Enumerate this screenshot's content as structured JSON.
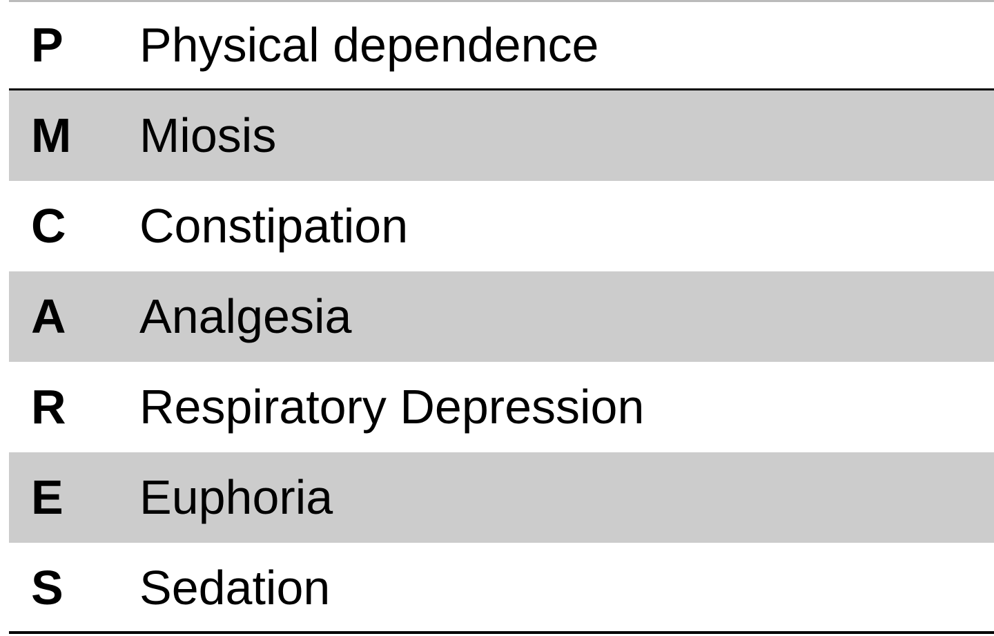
{
  "table": {
    "rows": [
      [
        "P",
        "Physical dependence"
      ],
      [
        "M",
        "Miosis"
      ],
      [
        "C",
        "Constipation"
      ],
      [
        "A",
        "Analgesia"
      ],
      [
        "R",
        "Respiratory Depression"
      ],
      [
        "E",
        "Euphoria"
      ],
      [
        "S",
        "Sedation"
      ]
    ]
  }
}
